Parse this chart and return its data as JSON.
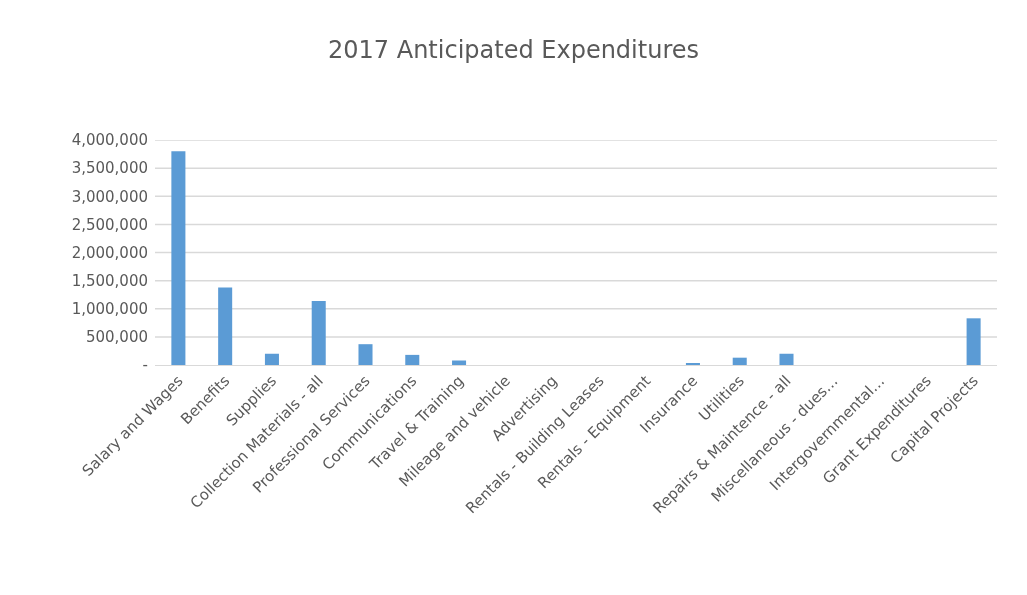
{
  "chart_data": {
    "type": "bar",
    "title": "2017 Anticipated Expenditures",
    "categories": [
      "Salary and Wages",
      "Benefits",
      "Supplies",
      "Collection Materials - all",
      "Professional Services",
      "Communications",
      "Travel & Training",
      "Mileage and vehicle",
      "Advertising",
      "Rentals - Building Leases",
      "Rentals - Equipment",
      "Insurance",
      "Utilities",
      "Repairs & Maintence - all",
      "Miscellaneous - dues…",
      "Intergovernmental…",
      "Grant Expenditures",
      "Capital Projects"
    ],
    "values": [
      3800000,
      1380000,
      200000,
      1140000,
      370000,
      180000,
      80000,
      0,
      0,
      0,
      0,
      30000,
      130000,
      200000,
      0,
      0,
      0,
      830000
    ],
    "color": "#5b9bd5",
    "ylim": [
      0,
      4000000
    ],
    "yticks": [
      {
        "value": 0,
        "label": "-"
      },
      {
        "value": 500000,
        "label": "500,000"
      },
      {
        "value": 1000000,
        "label": "1,000,000"
      },
      {
        "value": 1500000,
        "label": "1,500,000"
      },
      {
        "value": 2000000,
        "label": "2,000,000"
      },
      {
        "value": 2500000,
        "label": "2,500,000"
      },
      {
        "value": 3000000,
        "label": "3,000,000"
      },
      {
        "value": 3500000,
        "label": "3,500,000"
      },
      {
        "value": 4000000,
        "label": "4,000,000"
      }
    ],
    "grid": true
  }
}
